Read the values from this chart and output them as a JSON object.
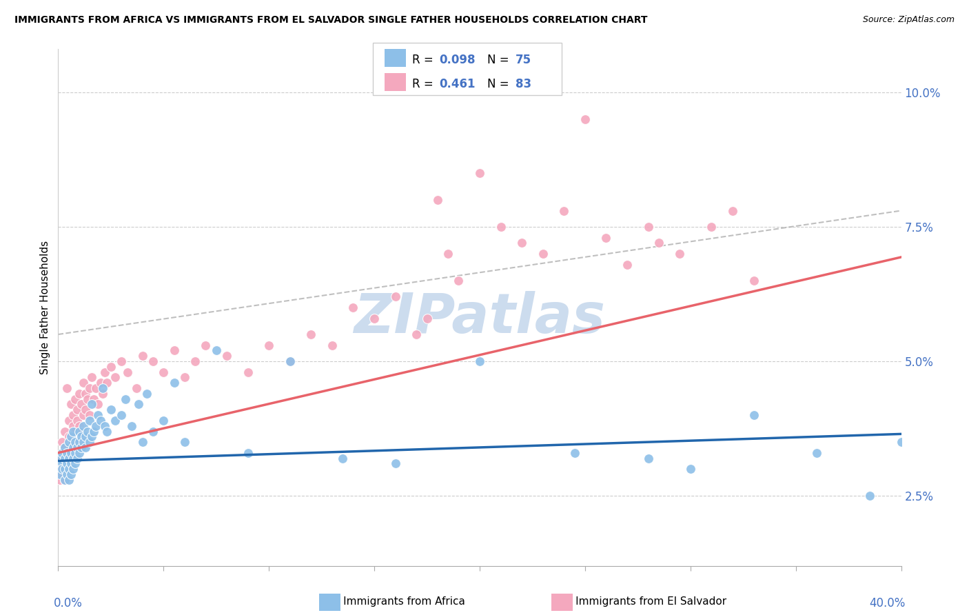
{
  "title": "IMMIGRANTS FROM AFRICA VS IMMIGRANTS FROM EL SALVADOR SINGLE FATHER HOUSEHOLDS CORRELATION CHART",
  "source": "Source: ZipAtlas.com",
  "ylabel": "Single Father Households",
  "ytick_vals": [
    2.5,
    5.0,
    7.5,
    10.0
  ],
  "ytick_labels": [
    "2.5%",
    "5.0%",
    "7.5%",
    "10.0%"
  ],
  "xmin": 0.0,
  "xmax": 0.4,
  "ymin": 1.2,
  "ymax": 10.8,
  "color_blue": "#8dbfe8",
  "color_pink": "#f4a8be",
  "color_blue_line": "#2166ac",
  "color_pink_line": "#e8636a",
  "color_blue_text": "#4472c4",
  "color_dashed": "#b0b0b0",
  "watermark": "ZIPatlas",
  "watermark_color": "#ccdcee",
  "africa_x": [
    0.001,
    0.001,
    0.002,
    0.002,
    0.002,
    0.003,
    0.003,
    0.003,
    0.003,
    0.004,
    0.004,
    0.004,
    0.005,
    0.005,
    0.005,
    0.005,
    0.006,
    0.006,
    0.006,
    0.006,
    0.007,
    0.007,
    0.007,
    0.007,
    0.008,
    0.008,
    0.008,
    0.009,
    0.009,
    0.01,
    0.01,
    0.01,
    0.011,
    0.011,
    0.012,
    0.012,
    0.013,
    0.013,
    0.014,
    0.015,
    0.015,
    0.016,
    0.016,
    0.017,
    0.018,
    0.019,
    0.02,
    0.021,
    0.022,
    0.023,
    0.025,
    0.027,
    0.03,
    0.032,
    0.035,
    0.038,
    0.04,
    0.042,
    0.045,
    0.05,
    0.055,
    0.06,
    0.075,
    0.09,
    0.11,
    0.135,
    0.16,
    0.2,
    0.245,
    0.28,
    0.3,
    0.33,
    0.36,
    0.385,
    0.4
  ],
  "africa_y": [
    3.2,
    2.9,
    3.1,
    3.3,
    3.0,
    2.8,
    3.2,
    3.0,
    3.4,
    3.1,
    2.9,
    3.3,
    3.0,
    3.2,
    2.8,
    3.5,
    3.1,
    3.3,
    2.9,
    3.6,
    3.2,
    3.4,
    3.0,
    3.7,
    3.3,
    3.1,
    3.5,
    3.2,
    3.4,
    3.5,
    3.3,
    3.7,
    3.4,
    3.6,
    3.5,
    3.8,
    3.6,
    3.4,
    3.7,
    3.5,
    3.9,
    3.6,
    4.2,
    3.7,
    3.8,
    4.0,
    3.9,
    4.5,
    3.8,
    3.7,
    4.1,
    3.9,
    4.0,
    4.3,
    3.8,
    4.2,
    3.5,
    4.4,
    3.7,
    3.9,
    4.6,
    3.5,
    5.2,
    3.3,
    5.0,
    3.2,
    3.1,
    5.0,
    3.3,
    3.2,
    3.0,
    4.0,
    3.3,
    2.5,
    3.5
  ],
  "salvador_x": [
    0.001,
    0.001,
    0.002,
    0.002,
    0.002,
    0.003,
    0.003,
    0.003,
    0.003,
    0.004,
    0.004,
    0.005,
    0.005,
    0.005,
    0.006,
    0.006,
    0.007,
    0.007,
    0.007,
    0.008,
    0.008,
    0.008,
    0.009,
    0.009,
    0.01,
    0.01,
    0.011,
    0.011,
    0.012,
    0.012,
    0.013,
    0.013,
    0.014,
    0.015,
    0.015,
    0.016,
    0.017,
    0.018,
    0.019,
    0.02,
    0.021,
    0.022,
    0.023,
    0.025,
    0.027,
    0.03,
    0.033,
    0.037,
    0.04,
    0.045,
    0.05,
    0.055,
    0.06,
    0.065,
    0.07,
    0.08,
    0.09,
    0.1,
    0.11,
    0.12,
    0.13,
    0.14,
    0.15,
    0.16,
    0.17,
    0.175,
    0.18,
    0.185,
    0.19,
    0.2,
    0.21,
    0.22,
    0.23,
    0.24,
    0.25,
    0.26,
    0.27,
    0.28,
    0.285,
    0.295,
    0.31,
    0.32,
    0.33
  ],
  "salvador_y": [
    2.8,
    3.0,
    3.2,
    2.9,
    3.5,
    3.1,
    3.4,
    2.8,
    3.7,
    3.3,
    4.5,
    3.2,
    3.6,
    3.9,
    3.4,
    4.2,
    3.5,
    3.8,
    4.0,
    3.7,
    4.3,
    3.5,
    4.1,
    3.9,
    3.8,
    4.4,
    3.7,
    4.2,
    4.0,
    4.6,
    4.1,
    4.4,
    4.3,
    4.5,
    4.0,
    4.7,
    4.3,
    4.5,
    4.2,
    4.6,
    4.4,
    4.8,
    4.6,
    4.9,
    4.7,
    5.0,
    4.8,
    4.5,
    5.1,
    5.0,
    4.8,
    5.2,
    4.7,
    5.0,
    5.3,
    5.1,
    4.8,
    5.3,
    5.0,
    5.5,
    5.3,
    6.0,
    5.8,
    6.2,
    5.5,
    5.8,
    8.0,
    7.0,
    6.5,
    8.5,
    7.5,
    7.2,
    7.0,
    7.8,
    9.5,
    7.3,
    6.8,
    7.5,
    7.2,
    7.0,
    7.5,
    7.8,
    6.5
  ]
}
